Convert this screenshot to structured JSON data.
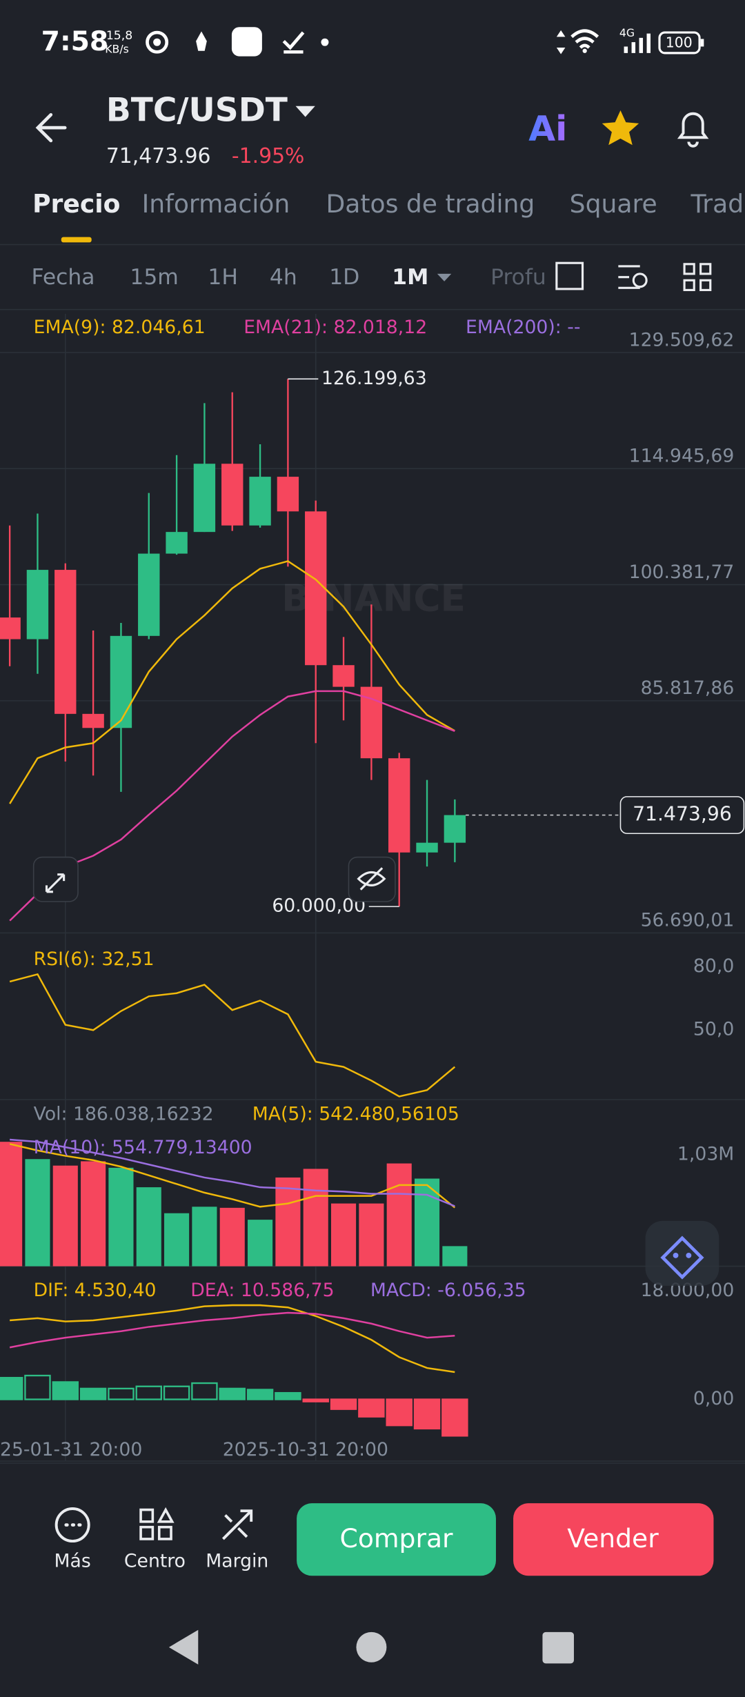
{
  "status_bar": {
    "time": "7:58",
    "net_speed": "15,8",
    "net_unit": "KB/s",
    "network": "4G",
    "battery": "100"
  },
  "header": {
    "pair": "BTC/USDT",
    "price": "71,473.96",
    "change": "-1.95%",
    "ai": "Ai"
  },
  "tabs": [
    "Precio",
    "Información",
    "Datos de trading",
    "Square",
    "Trad"
  ],
  "active_tab": 0,
  "timeframes": [
    "Fecha",
    "15m",
    "1H",
    "4h",
    "1D",
    "1M",
    "Profu"
  ],
  "active_timeframe": 5,
  "chart_data": [
    {
      "type": "candlestick",
      "watermark": "BINANCE",
      "categories": [
        null,
        null,
        "25-01-31 20:00",
        null,
        null,
        null,
        null,
        null,
        null,
        null,
        null,
        "2025-10-31 20:00",
        null,
        null,
        null,
        null,
        null
      ],
      "open": [
        96266,
        93548,
        102244,
        84174,
        82408,
        93956,
        104281,
        106999,
        115558,
        107814,
        113927,
        109580,
        90288,
        87571,
        78604,
        66784,
        68007
      ],
      "high": [
        107814,
        109308,
        103059,
        94635,
        95586,
        111890,
        116645,
        123166,
        124525,
        118003,
        126199.63,
        110939,
        93820,
        97896,
        79283,
        75887,
        73441
      ],
      "low": [
        90152,
        89201,
        78196,
        76430,
        74392,
        93548,
        104146,
        106999,
        107134,
        107542,
        102651,
        80506,
        83359,
        75887,
        60000,
        65018,
        65561
      ],
      "close": [
        93548,
        102244,
        84174,
        82408,
        93956,
        104281,
        106999,
        115558,
        107814,
        113927,
        109580,
        90288,
        87571,
        78604,
        66784,
        68007,
        71473.96
      ],
      "up_color": "#2ebd85",
      "down_color": "#f6465d",
      "series": [
        {
          "name": "EMA(9): 82.046,61",
          "color": "#f0b90b",
          "values": [
            72898,
            78604,
            79962,
            80506,
            83359,
            89473,
            93548,
            96537,
            99934,
            102379,
            103330,
            101021,
            97624,
            92869,
            87842,
            84038,
            82046.61
          ]
        },
        {
          "name": "EMA(21): 82.018,12",
          "color": "#e040a0",
          "values": [
            58225,
            61621,
            65018,
            66376,
            68414,
            71539,
            74528,
            77925,
            81321,
            84038,
            86348,
            87027,
            87027,
            86076,
            84718,
            83359,
            82018.12
          ]
        },
        {
          "name": "EMA(200): --",
          "color": "#9b6fe0",
          "values": [
            null,
            null,
            null,
            null,
            null,
            null,
            null,
            null,
            null,
            null,
            null,
            null,
            null,
            null,
            null,
            null,
            null
          ]
        }
      ],
      "ylim": [
        56690.01,
        134365
      ],
      "yticks": [
        {
          "value": 129509.62,
          "label": "129.509,62"
        },
        {
          "value": 114945.69,
          "label": "114.945,69"
        },
        {
          "value": 100381.77,
          "label": "100.381,77"
        },
        {
          "value": 85817.86,
          "label": "85.817,86"
        },
        {
          "value": 56690.01,
          "label": "56.690,01"
        }
      ],
      "grid": true,
      "annotations": [
        {
          "value": 126199.63,
          "label": "126.199,63"
        },
        {
          "value": 60000,
          "label": "60.000,00"
        }
      ],
      "last_price": {
        "value": 71473.96,
        "label": "71.473,96"
      }
    },
    {
      "type": "line",
      "series": [
        {
          "name": "RSI(6): 32,51",
          "color": "#f0b90b",
          "values": [
            73,
            76.5,
            52.5,
            50,
            59,
            66,
            67.5,
            71.5,
            59.5,
            64,
            57.5,
            35,
            32.5,
            26,
            18.5,
            21.5,
            32.51
          ]
        }
      ],
      "ylim": [
        17,
        92
      ],
      "yticks": [
        {
          "value": 80,
          "label": "80,0"
        },
        {
          "value": 50,
          "label": "50,0"
        }
      ],
      "grid": false
    },
    {
      "type": "bar",
      "title": "Vol: 186.038,16232",
      "values": [
        1150000,
        990000,
        930000,
        970000,
        910000,
        730000,
        490000,
        550000,
        540000,
        430000,
        820000,
        900000,
        580000,
        580000,
        950000,
        810000,
        186038.16232
      ],
      "series": [
        {
          "name": "MA(5): 542.480,56105",
          "color": "#f0b90b",
          "values": [
            1130000,
            1070000,
            1020000,
            980000,
            920000,
            840000,
            760000,
            680000,
            620000,
            550000,
            580000,
            650000,
            650000,
            650000,
            750000,
            750000,
            542480.56105
          ]
        },
        {
          "name": "MA(10): 554.779,13400",
          "color": "#9b6fe0",
          "values": [
            1170000,
            1150000,
            1100000,
            1050000,
            1000000,
            940000,
            880000,
            820000,
            780000,
            730000,
            720000,
            700000,
            690000,
            670000,
            670000,
            660000,
            554779.134
          ]
        }
      ],
      "ylim": [
        0,
        1300000
      ],
      "yticks": [
        {
          "value": 1030000,
          "label": "1,03M"
        }
      ],
      "grid": false
    },
    {
      "type": "macd",
      "series": [
        {
          "name": "DIF: 4.530,40",
          "color": "#f0b90b",
          "values": [
            13140,
            13500,
            12960,
            13140,
            13680,
            14220,
            14760,
            15480,
            15660,
            15660,
            15300,
            13860,
            12060,
            9900,
            7020,
            5220,
            4530.4
          ]
        },
        {
          "name": "DEA: 10.586,75",
          "color": "#e040a0",
          "values": [
            8640,
            9540,
            10260,
            10800,
            11340,
            12060,
            12600,
            13140,
            13500,
            14040,
            14400,
            14220,
            13500,
            12600,
            11340,
            10260,
            10586.75
          ]
        }
      ],
      "histogram": {
        "name": "MACD: -6.056,35",
        "color": "#9b6fe0",
        "values": [
          3600,
          3960,
          2880,
          1800,
          1800,
          2160,
          2160,
          2700,
          1800,
          1620,
          1080,
          -360,
          -1620,
          -2880,
          -4320,
          -4860,
          -6056.35
        ]
      },
      "ylim": [
        -6660,
        20340
      ],
      "yticks": [
        {
          "value": 18000,
          "label": "18.000,00"
        },
        {
          "value": 0,
          "label": "0,00"
        }
      ],
      "grid": false
    }
  ],
  "bottom_bar": {
    "items": [
      "Más",
      "Centro",
      "Margin"
    ],
    "buy": "Comprar",
    "sell": "Vender"
  }
}
